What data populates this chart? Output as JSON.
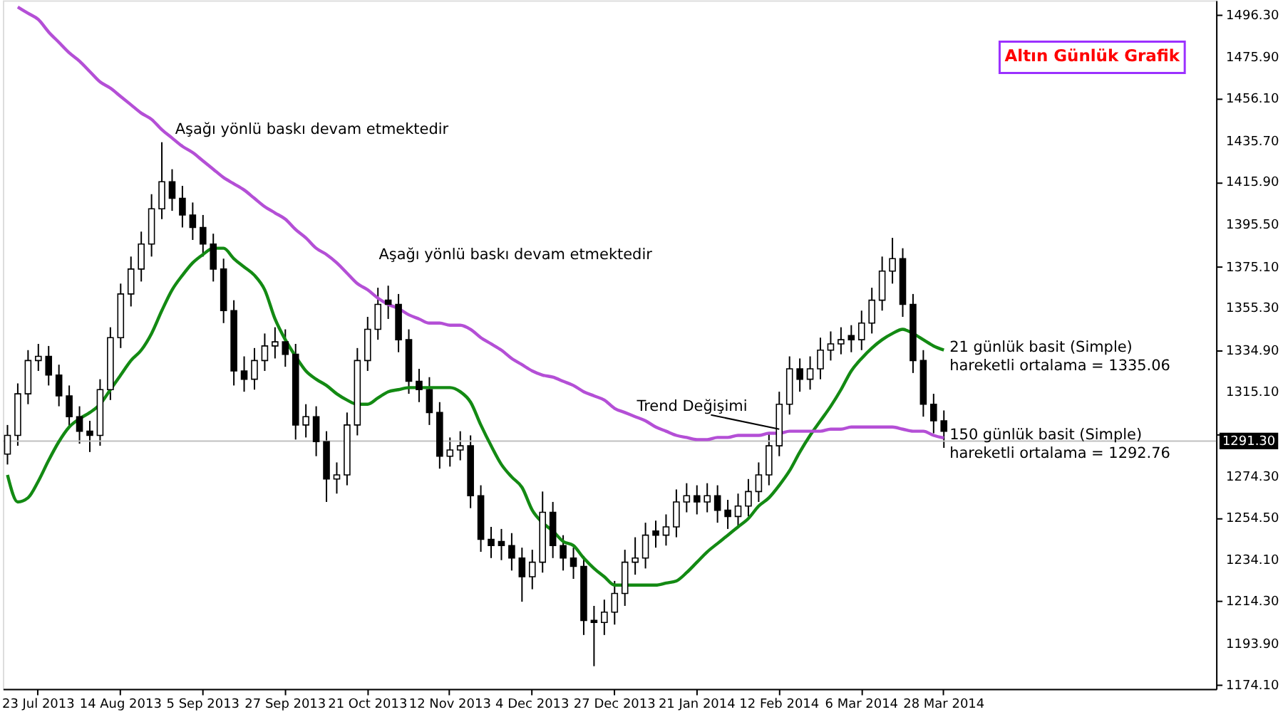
{
  "chart_data": {
    "type": "candlestick",
    "title": "Altın Günlük Grafik",
    "categories": [
      null,
      null,
      null,
      "23 Jul 2013",
      null,
      null,
      null,
      null,
      null,
      null,
      null,
      "14 Aug 2013",
      null,
      null,
      null,
      null,
      null,
      null,
      null,
      "5 Sep 2013",
      null,
      null,
      null,
      null,
      null,
      null,
      null,
      "27 Sep 2013",
      null,
      null,
      null,
      null,
      null,
      null,
      null,
      "21 Oct 2013",
      null,
      null,
      null,
      null,
      null,
      null,
      null,
      "12 Nov 2013",
      null,
      null,
      null,
      null,
      null,
      null,
      null,
      "4 Dec 2013",
      null,
      null,
      null,
      null,
      null,
      null,
      null,
      "27 Dec 2013",
      null,
      null,
      null,
      null,
      null,
      null,
      null,
      "21 Jan 2014",
      null,
      null,
      null,
      null,
      null,
      null,
      null,
      "12 Feb 2014",
      null,
      null,
      null,
      null,
      null,
      null,
      null,
      "6 Mar 2014",
      null,
      null,
      null,
      null,
      null,
      null,
      null,
      "28 Mar 2014",
      null,
      null,
      null,
      null,
      null,
      null,
      null,
      null,
      null,
      null,
      null,
      null,
      null,
      null,
      null,
      null,
      null,
      null,
      null,
      null,
      null,
      null,
      null,
      null,
      null,
      null
    ],
    "ohlc": [
      [
        1285,
        1299,
        1280,
        1294
      ],
      [
        1294,
        1319,
        1289,
        1314
      ],
      [
        1314,
        1335,
        1309,
        1330
      ],
      [
        1330,
        1338,
        1325,
        1332
      ],
      [
        1332,
        1337,
        1318,
        1323
      ],
      [
        1323,
        1328,
        1308,
        1313
      ],
      [
        1313,
        1318,
        1298,
        1303
      ],
      [
        1303,
        1308,
        1290,
        1296
      ],
      [
        1296,
        1301,
        1286,
        1294
      ],
      [
        1294,
        1321,
        1289,
        1316
      ],
      [
        1316,
        1346,
        1311,
        1341
      ],
      [
        1341,
        1367,
        1336,
        1362
      ],
      [
        1362,
        1380,
        1356,
        1374
      ],
      [
        1374,
        1392,
        1368,
        1386
      ],
      [
        1386,
        1410,
        1380,
        1403
      ],
      [
        1403,
        1435,
        1398,
        1416
      ],
      [
        1416,
        1422,
        1402,
        1408
      ],
      [
        1408,
        1414,
        1394,
        1400
      ],
      [
        1400,
        1406,
        1388,
        1394
      ],
      [
        1394,
        1400,
        1380,
        1386
      ],
      [
        1386,
        1391,
        1368,
        1374
      ],
      [
        1374,
        1379,
        1348,
        1354
      ],
      [
        1354,
        1359,
        1318,
        1325
      ],
      [
        1325,
        1332,
        1315,
        1321
      ],
      [
        1321,
        1336,
        1316,
        1330
      ],
      [
        1330,
        1343,
        1325,
        1337
      ],
      [
        1337,
        1346,
        1331,
        1339
      ],
      [
        1339,
        1345,
        1327,
        1333
      ],
      [
        1333,
        1338,
        1292,
        1299
      ],
      [
        1299,
        1309,
        1293,
        1303
      ],
      [
        1303,
        1308,
        1284,
        1291
      ],
      [
        1291,
        1296,
        1262,
        1273
      ],
      [
        1273,
        1281,
        1266,
        1275
      ],
      [
        1275,
        1305,
        1270,
        1299
      ],
      [
        1299,
        1336,
        1294,
        1330
      ],
      [
        1330,
        1351,
        1325,
        1345
      ],
      [
        1345,
        1365,
        1340,
        1357
      ],
      [
        1359,
        1366,
        1350,
        1357
      ],
      [
        1357,
        1362,
        1334,
        1340
      ],
      [
        1340,
        1345,
        1314,
        1320
      ],
      [
        1320,
        1326,
        1310,
        1316
      ],
      [
        1316,
        1322,
        1299,
        1305
      ],
      [
        1305,
        1310,
        1278,
        1284
      ],
      [
        1284,
        1293,
        1279,
        1287
      ],
      [
        1287,
        1296,
        1282,
        1289
      ],
      [
        1289,
        1294,
        1259,
        1265
      ],
      [
        1265,
        1270,
        1238,
        1244
      ],
      [
        1244,
        1250,
        1235,
        1241
      ],
      [
        1243,
        1249,
        1234,
        1241
      ],
      [
        1241,
        1247,
        1229,
        1235
      ],
      [
        1235,
        1240,
        1214,
        1226
      ],
      [
        1226,
        1239,
        1220,
        1233
      ],
      [
        1233,
        1267,
        1228,
        1257
      ],
      [
        1257,
        1262,
        1235,
        1241
      ],
      [
        1241,
        1246,
        1229,
        1235
      ],
      [
        1235,
        1240,
        1225,
        1231
      ],
      [
        1231,
        1236,
        1198,
        1205
      ],
      [
        1205,
        1212,
        1183,
        1204
      ],
      [
        1204,
        1215,
        1198,
        1209
      ],
      [
        1209,
        1224,
        1203,
        1218
      ],
      [
        1218,
        1239,
        1212,
        1233
      ],
      [
        1233,
        1245,
        1227,
        1235
      ],
      [
        1235,
        1252,
        1230,
        1246
      ],
      [
        1248,
        1253,
        1240,
        1246
      ],
      [
        1246,
        1256,
        1241,
        1250
      ],
      [
        1250,
        1268,
        1245,
        1262
      ],
      [
        1262,
        1271,
        1257,
        1265
      ],
      [
        1265,
        1270,
        1256,
        1262
      ],
      [
        1262,
        1271,
        1257,
        1265
      ],
      [
        1265,
        1270,
        1252,
        1258
      ],
      [
        1258,
        1263,
        1249,
        1255
      ],
      [
        1255,
        1266,
        1250,
        1260
      ],
      [
        1260,
        1273,
        1255,
        1267
      ],
      [
        1267,
        1281,
        1262,
        1275
      ],
      [
        1275,
        1295,
        1270,
        1289
      ],
      [
        1289,
        1315,
        1284,
        1309
      ],
      [
        1309,
        1332,
        1304,
        1326
      ],
      [
        1326,
        1331,
        1315,
        1321
      ],
      [
        1321,
        1332,
        1316,
        1326
      ],
      [
        1326,
        1341,
        1321,
        1335
      ],
      [
        1335,
        1344,
        1330,
        1338
      ],
      [
        1338,
        1346,
        1333,
        1340
      ],
      [
        1342,
        1347,
        1334,
        1340
      ],
      [
        1340,
        1354,
        1335,
        1348
      ],
      [
        1348,
        1365,
        1343,
        1359
      ],
      [
        1359,
        1380,
        1354,
        1373
      ],
      [
        1373,
        1389,
        1367,
        1379
      ],
      [
        1379,
        1384,
        1351,
        1357
      ],
      [
        1357,
        1362,
        1324,
        1330
      ],
      [
        1330,
        1335,
        1303,
        1309
      ],
      [
        1309,
        1314,
        1295,
        1301
      ],
      [
        1301,
        1306,
        1288,
        1296
      ],
      null,
      null,
      null,
      null,
      null,
      null,
      null,
      null,
      null,
      null,
      null,
      null,
      null,
      null,
      null,
      null,
      null,
      null,
      null,
      null,
      null,
      null,
      null,
      null,
      null,
      null
    ],
    "series": [
      {
        "type": "line",
        "color": "#138a13",
        "values": [
          1275,
          1262,
          1264,
          1272,
          1282,
          1291,
          1298,
          1302,
          1305,
          1309,
          1316,
          1323,
          1330,
          1335,
          1343,
          1354,
          1364,
          1371,
          1377,
          1381,
          1384,
          1384,
          1379,
          1375,
          1371,
          1364,
          1350,
          1340,
          1332,
          1325,
          1321,
          1318,
          1314,
          1311,
          1309,
          1309,
          1312,
          1315,
          1316,
          1317,
          1317,
          1317,
          1317,
          1317,
          1315,
          1310,
          1299,
          1289,
          1280,
          1274,
          1269,
          1258,
          1252,
          1248,
          1243,
          1241,
          1235,
          1230,
          1226,
          1222,
          1222,
          1222,
          1222,
          1222,
          1223,
          1224,
          1228,
          1233,
          1238,
          1242,
          1246,
          1250,
          1254,
          1260,
          1264,
          1270,
          1277,
          1286,
          1294,
          1301,
          1308,
          1316,
          1325,
          1331,
          1336,
          1340,
          1343,
          1345,
          1343,
          1340,
          1337,
          1335.06,
          null,
          null,
          null,
          null,
          null,
          null,
          null,
          null,
          null,
          null,
          null,
          null,
          null,
          null,
          null,
          null,
          null,
          null,
          null,
          null,
          null,
          null,
          null,
          null,
          null,
          null
        ]
      },
      {
        "type": "line",
        "color": "#b44fd6",
        "values": [
          null,
          1500,
          1497,
          1494,
          1488,
          1483,
          1478,
          1474,
          1469,
          1464,
          1461,
          1457,
          1453,
          1449,
          1446,
          1441,
          1437,
          1433,
          1430,
          1426,
          1422,
          1418,
          1415,
          1412,
          1408,
          1404,
          1401,
          1398,
          1393,
          1389,
          1384,
          1381,
          1377,
          1372,
          1367,
          1364,
          1360,
          1357,
          1355,
          1352,
          1350,
          1348,
          1348,
          1347,
          1347,
          1345,
          1341,
          1338,
          1335,
          1331,
          1328,
          1325,
          1323,
          1322,
          1320,
          1318,
          1315,
          1313,
          1311,
          1307,
          1305,
          1303,
          1301,
          1298,
          1296,
          1294,
          1293,
          1292,
          1292,
          1293,
          1293,
          1294,
          1294,
          1294,
          1295,
          1295,
          1296,
          1296,
          1296,
          1296,
          1297,
          1297,
          1298,
          1298,
          1298,
          1298,
          1298,
          1297,
          1296,
          1296,
          1294,
          1292.76,
          null,
          null,
          null,
          null,
          null,
          null,
          null,
          null,
          null,
          null,
          null,
          null,
          null,
          null,
          null,
          null,
          null,
          null,
          null,
          null,
          null,
          null,
          null,
          null,
          null,
          null
        ]
      }
    ],
    "ylim": [
      1172.1,
      1503.2
    ],
    "yticks": [
      {
        "value": 1174.1,
        "label": "1174.10"
      },
      {
        "value": 1193.9,
        "label": "1193.90"
      },
      {
        "value": 1214.3,
        "label": "1214.30"
      },
      {
        "value": 1234.1,
        "label": "1234.10"
      },
      {
        "value": 1254.5,
        "label": "1254.50"
      },
      {
        "value": 1274.3,
        "label": "1274.30"
      },
      {
        "value": 1294.7,
        "label": null
      },
      {
        "value": 1315.1,
        "label": "1315.10"
      },
      {
        "value": 1334.9,
        "label": "1334.90"
      },
      {
        "value": 1355.3,
        "label": "1355.30"
      },
      {
        "value": 1375.1,
        "label": "1375.10"
      },
      {
        "value": 1395.5,
        "label": "1395.50"
      },
      {
        "value": 1415.9,
        "label": "1415.90"
      },
      {
        "value": 1435.7,
        "label": "1435.70"
      },
      {
        "value": 1456.1,
        "label": "1456.10"
      },
      {
        "value": 1475.9,
        "label": "1475.90"
      },
      {
        "value": 1496.3,
        "label": "1496.30"
      }
    ],
    "ref_lines": [
      {
        "axis": "y",
        "value": 1291.3,
        "label": "1291.30",
        "color": "#c0c0c0"
      }
    ],
    "annotations": [
      "Aşağı yönlü baskı devam etmektedir",
      "Aşağı yönlü baskı devam etmektedir",
      {
        "text": "Trend Değişimi",
        "x": "12 Feb 2014",
        "y": 1297
      },
      {
        "text": "21 günlük basit (Simple)\nhareketli ortalama = 1335.06",
        "x": "28 Mar 2014",
        "y": 1335.06
      },
      {
        "text": "150 günlük basit (Simple)\nhareketli ortalama = 1292.76",
        "x": "28 Mar 2014",
        "y": 1292.76
      }
    ]
  }
}
